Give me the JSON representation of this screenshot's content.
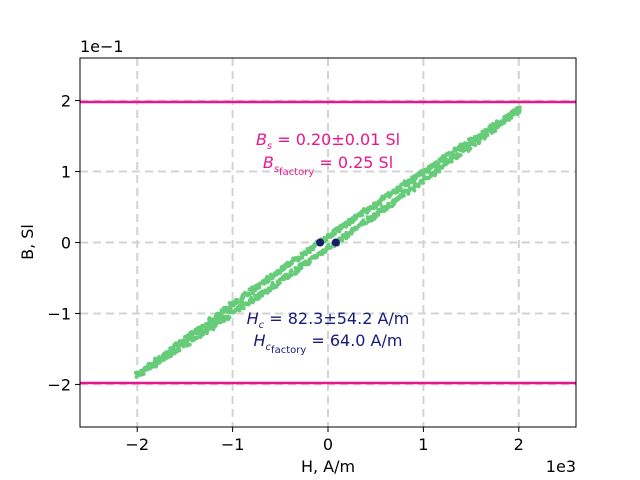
{
  "chart_data": {
    "type": "scatter",
    "xlabel": "H, A/m",
    "ylabel": "B, Sl",
    "x_offset_label": "1e3",
    "y_offset_label": "1e−1",
    "xlim": [
      -2600,
      2600
    ],
    "ylim": [
      -0.26,
      0.26
    ],
    "xticks": [
      -2000,
      -1000,
      0,
      1000,
      2000
    ],
    "xtick_labels": [
      "−2",
      "−1",
      "0",
      "1",
      "2"
    ],
    "yticks": [
      -0.2,
      -0.1,
      0,
      0.1,
      0.2
    ],
    "ytick_labels": [
      "−2",
      "−1",
      "0",
      "1",
      "2"
    ],
    "grid": true,
    "grid_style": "dashed",
    "hlines": [
      {
        "y": 0.198,
        "color": "#e6178c"
      },
      {
        "y": -0.198,
        "color": "#e6178c"
      }
    ],
    "coercive_points": {
      "color": "#1a1a6e",
      "x": [
        -82.3,
        82.3
      ],
      "y": [
        0,
        0
      ]
    },
    "loop": {
      "color": "#66cc7a",
      "x_start": -2000,
      "x_end": 2000,
      "b_start": -0.187,
      "b_end": 0.187,
      "coercive_shift": 82.3
    },
    "annotations": {
      "bs_main": "B",
      "bs_sub": "s",
      "bs_value": " = 0.20±0.01 Sl",
      "bs_factory_main": "B",
      "bs_factory_sub": "s",
      "bs_factory_subsub": "factory",
      "bs_factory_value": " = 0.25 Sl",
      "hc_main": "H",
      "hc_sub": "c",
      "hc_value": " = 82.3±54.2 A/m",
      "hc_factory_main": "H",
      "hc_factory_sub": "c",
      "hc_factory_subsub": "factory",
      "hc_factory_value": " = 64.0 A/m"
    },
    "colors": {
      "saturation_line": "#e6178c",
      "loop_points": "#66cc7a",
      "coercive_points": "#1a1a6e",
      "grid": "#d3d3d3"
    }
  }
}
